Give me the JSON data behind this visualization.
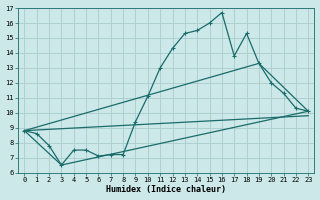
{
  "title": "",
  "xlabel": "Humidex (Indice chaleur)",
  "bg_color": "#cce8e8",
  "grid_color": "#aacccc",
  "line_color": "#1a6b6b",
  "xlim": [
    -0.5,
    23.5
  ],
  "ylim": [
    6,
    17
  ],
  "yticks": [
    6,
    7,
    8,
    9,
    10,
    11,
    12,
    13,
    14,
    15,
    16,
    17
  ],
  "xticks": [
    0,
    1,
    2,
    3,
    4,
    5,
    6,
    7,
    8,
    9,
    10,
    11,
    12,
    13,
    14,
    15,
    16,
    17,
    18,
    19,
    20,
    21,
    22,
    23
  ],
  "line1_x": [
    0,
    1,
    2,
    3,
    4,
    5,
    6,
    7,
    8,
    9,
    10,
    11,
    12,
    13,
    14,
    15,
    16,
    17,
    18,
    19,
    20,
    21,
    22,
    23
  ],
  "line1_y": [
    8.8,
    8.6,
    7.8,
    6.5,
    7.5,
    7.5,
    7.1,
    7.2,
    7.2,
    9.4,
    11.1,
    13.0,
    14.3,
    15.3,
    15.5,
    16.0,
    16.7,
    13.8,
    15.3,
    13.3,
    12.0,
    11.3,
    10.3,
    10.1
  ],
  "line2_x": [
    0,
    3,
    23
  ],
  "line2_y": [
    8.8,
    6.5,
    10.1
  ],
  "line3_x": [
    0,
    23
  ],
  "line3_y": [
    8.8,
    9.8
  ],
  "line4_x": [
    0,
    19,
    23
  ],
  "line4_y": [
    8.8,
    13.3,
    10.1
  ]
}
